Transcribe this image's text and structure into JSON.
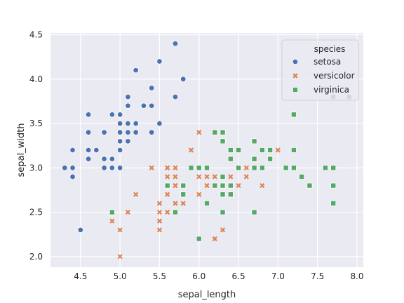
{
  "chart_data": {
    "type": "scatter",
    "xlabel": "sepal_length",
    "ylabel": "sepal_width",
    "xlim": [
      4.12,
      8.08
    ],
    "ylim": [
      1.88,
      4.52
    ],
    "xticks": [
      "4.5",
      "5.0",
      "5.5",
      "6.0",
      "6.5",
      "7.0",
      "7.5",
      "8.0"
    ],
    "yticks": [
      "2.0",
      "2.5",
      "3.0",
      "3.5",
      "4.0",
      "4.5"
    ],
    "grid": true,
    "legend": {
      "title": "species",
      "placement": "top-right"
    },
    "series": [
      {
        "name": "setosa",
        "marker": "circle",
        "color": "#4c72b0",
        "points": [
          [
            5.1,
            3.5
          ],
          [
            4.9,
            3.0
          ],
          [
            4.7,
            3.2
          ],
          [
            4.6,
            3.1
          ],
          [
            5.0,
            3.6
          ],
          [
            5.4,
            3.9
          ],
          [
            4.6,
            3.4
          ],
          [
            5.0,
            3.4
          ],
          [
            4.4,
            2.9
          ],
          [
            4.9,
            3.1
          ],
          [
            5.4,
            3.7
          ],
          [
            4.8,
            3.4
          ],
          [
            4.8,
            3.0
          ],
          [
            4.3,
            3.0
          ],
          [
            5.8,
            4.0
          ],
          [
            5.7,
            4.4
          ],
          [
            5.4,
            3.9
          ],
          [
            5.1,
            3.5
          ],
          [
            5.7,
            3.8
          ],
          [
            5.1,
            3.8
          ],
          [
            5.4,
            3.4
          ],
          [
            5.1,
            3.7
          ],
          [
            4.6,
            3.6
          ],
          [
            5.1,
            3.3
          ],
          [
            4.8,
            3.4
          ],
          [
            5.0,
            3.0
          ],
          [
            5.0,
            3.4
          ],
          [
            5.2,
            3.5
          ],
          [
            5.2,
            3.4
          ],
          [
            4.7,
            3.2
          ],
          [
            4.8,
            3.1
          ],
          [
            5.4,
            3.4
          ],
          [
            5.2,
            4.1
          ],
          [
            5.5,
            4.2
          ],
          [
            4.9,
            3.1
          ],
          [
            5.0,
            3.2
          ],
          [
            5.5,
            3.5
          ],
          [
            4.9,
            3.6
          ],
          [
            4.4,
            3.0
          ],
          [
            5.1,
            3.4
          ],
          [
            5.0,
            3.5
          ],
          [
            4.5,
            2.3
          ],
          [
            4.4,
            3.2
          ],
          [
            5.0,
            3.5
          ],
          [
            5.1,
            3.8
          ],
          [
            4.8,
            3.0
          ],
          [
            5.1,
            3.8
          ],
          [
            4.6,
            3.2
          ],
          [
            5.3,
            3.7
          ],
          [
            5.0,
            3.3
          ]
        ]
      },
      {
        "name": "versicolor",
        "marker": "x",
        "color": "#dd8452",
        "points": [
          [
            7.0,
            3.2
          ],
          [
            6.4,
            3.2
          ],
          [
            6.9,
            3.1
          ],
          [
            5.5,
            2.3
          ],
          [
            6.5,
            2.8
          ],
          [
            5.7,
            2.8
          ],
          [
            6.3,
            3.3
          ],
          [
            4.9,
            2.4
          ],
          [
            6.6,
            2.9
          ],
          [
            5.2,
            2.7
          ],
          [
            5.0,
            2.0
          ],
          [
            5.9,
            3.0
          ],
          [
            6.0,
            2.2
          ],
          [
            6.1,
            2.9
          ],
          [
            5.6,
            2.9
          ],
          [
            6.7,
            3.1
          ],
          [
            5.6,
            3.0
          ],
          [
            5.8,
            2.7
          ],
          [
            6.2,
            2.2
          ],
          [
            5.6,
            2.5
          ],
          [
            5.9,
            3.2
          ],
          [
            6.1,
            2.8
          ],
          [
            6.3,
            2.5
          ],
          [
            6.1,
            2.8
          ],
          [
            6.4,
            2.9
          ],
          [
            6.6,
            3.0
          ],
          [
            6.8,
            2.8
          ],
          [
            6.7,
            3.0
          ],
          [
            6.0,
            2.9
          ],
          [
            5.7,
            2.6
          ],
          [
            5.5,
            2.4
          ],
          [
            5.5,
            2.4
          ],
          [
            5.8,
            2.7
          ],
          [
            6.0,
            2.7
          ],
          [
            5.4,
            3.0
          ],
          [
            6.0,
            3.4
          ],
          [
            6.7,
            3.1
          ],
          [
            6.3,
            2.3
          ],
          [
            5.6,
            3.0
          ],
          [
            5.5,
            2.5
          ],
          [
            5.5,
            2.6
          ],
          [
            6.1,
            3.0
          ],
          [
            5.8,
            2.6
          ],
          [
            5.0,
            2.3
          ],
          [
            5.6,
            2.7
          ],
          [
            5.7,
            3.0
          ],
          [
            5.7,
            2.9
          ],
          [
            6.2,
            2.9
          ],
          [
            5.1,
            2.5
          ],
          [
            5.7,
            2.8
          ]
        ]
      },
      {
        "name": "virginica",
        "marker": "square",
        "color": "#55a868",
        "points": [
          [
            6.3,
            3.3
          ],
          [
            5.8,
            2.7
          ],
          [
            7.1,
            3.0
          ],
          [
            6.3,
            2.9
          ],
          [
            6.5,
            3.0
          ],
          [
            7.6,
            3.0
          ],
          [
            4.9,
            2.5
          ],
          [
            7.3,
            2.9
          ],
          [
            6.7,
            2.5
          ],
          [
            7.2,
            3.6
          ],
          [
            6.5,
            3.2
          ],
          [
            6.4,
            2.7
          ],
          [
            6.8,
            3.0
          ],
          [
            5.7,
            2.5
          ],
          [
            5.8,
            2.8
          ],
          [
            6.4,
            3.2
          ],
          [
            6.5,
            3.0
          ],
          [
            7.7,
            3.8
          ],
          [
            7.7,
            2.6
          ],
          [
            6.0,
            2.2
          ],
          [
            6.9,
            3.2
          ],
          [
            5.6,
            2.8
          ],
          [
            7.7,
            2.8
          ],
          [
            6.3,
            2.7
          ],
          [
            6.7,
            3.3
          ],
          [
            7.2,
            3.2
          ],
          [
            6.2,
            2.8
          ],
          [
            6.1,
            3.0
          ],
          [
            6.4,
            2.8
          ],
          [
            7.2,
            3.0
          ],
          [
            7.4,
            2.8
          ],
          [
            7.9,
            3.8
          ],
          [
            6.4,
            2.8
          ],
          [
            6.3,
            2.8
          ],
          [
            6.1,
            2.6
          ],
          [
            7.7,
            3.0
          ],
          [
            6.3,
            3.4
          ],
          [
            6.4,
            3.1
          ],
          [
            6.0,
            3.0
          ],
          [
            6.9,
            3.1
          ],
          [
            6.7,
            3.1
          ],
          [
            6.9,
            3.1
          ],
          [
            5.8,
            2.7
          ],
          [
            6.8,
            3.2
          ],
          [
            6.7,
            3.3
          ],
          [
            6.7,
            3.0
          ],
          [
            6.3,
            2.5
          ],
          [
            6.5,
            3.0
          ],
          [
            6.2,
            3.4
          ],
          [
            5.9,
            3.0
          ]
        ]
      }
    ]
  }
}
